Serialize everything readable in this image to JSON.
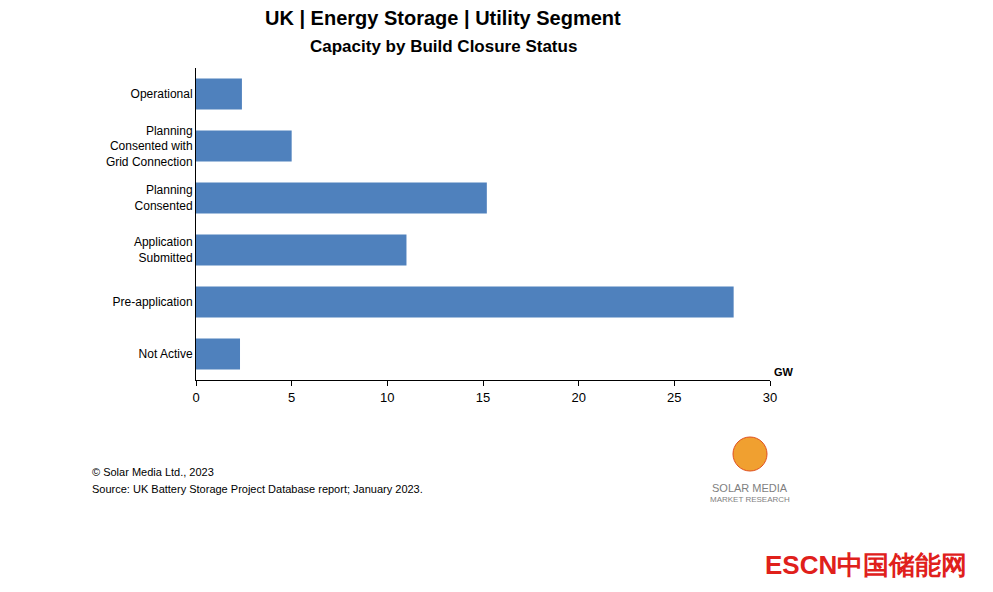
{
  "chart_data": {
    "type": "bar",
    "orientation": "horizontal",
    "title": "UK | Energy Storage | Utility Segment",
    "subtitle": "Capacity by Build Closure Status",
    "categories": [
      "Operational",
      "Planning\nConsented with\nGrid Connection",
      "Planning\nConsented",
      "Application\nSubmitted",
      "Pre-application",
      "Not Active"
    ],
    "values": [
      2.4,
      5.0,
      15.2,
      11.0,
      28.1,
      2.3
    ],
    "color": "#4f81bd",
    "xlim": [
      0,
      30
    ],
    "xticks": [
      0,
      5,
      10,
      15,
      20,
      25,
      30
    ],
    "xlabel": "GW",
    "grid": false,
    "annotations": [
      "© Solar Media Ltd., 2023",
      "Source: UK Battery Storage Project Database report; January 2023.",
      "SOLAR MEDIA",
      "MARKET RESEARCH",
      "ESCN中国储能网"
    ]
  }
}
